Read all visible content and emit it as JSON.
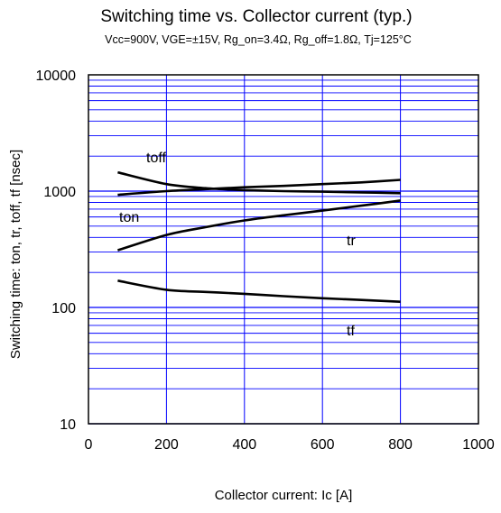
{
  "chart_data": {
    "type": "line",
    "title": "Switching time  vs.  Collector current  (typ.)",
    "subtitle": "Vcc=900V, VGE=±15V, Rg_on=3.4Ω, Rg_off=1.8Ω, Tj=125°C",
    "xlabel": "Collector current: Ic [A]",
    "ylabel": "Switching time: ton, tr, toff, tf [nsec]",
    "xlim": [
      0,
      1000
    ],
    "ylim": [
      10,
      10000
    ],
    "yscale": "log",
    "grid": true,
    "x_ticks": [
      "0",
      "200",
      "400",
      "600",
      "800",
      "1000"
    ],
    "y_ticks": [
      "10",
      "100",
      "1000",
      "10000"
    ],
    "series": [
      {
        "name": "toff",
        "x": [
          75,
          200,
          300,
          400,
          500,
          600,
          700,
          800
        ],
        "y": [
          1450,
          1150,
          1060,
          1020,
          1000,
          990,
          975,
          960
        ]
      },
      {
        "name": "ton",
        "x": [
          75,
          200,
          300,
          400,
          500,
          600,
          700,
          800
        ],
        "y": [
          930,
          1000,
          1040,
          1080,
          1110,
          1150,
          1190,
          1250
        ]
      },
      {
        "name": "tr",
        "x": [
          75,
          200,
          300,
          400,
          500,
          600,
          700,
          800
        ],
        "y": [
          310,
          420,
          490,
          560,
          620,
          680,
          750,
          830
        ]
      },
      {
        "name": "tf",
        "x": [
          75,
          200,
          300,
          400,
          500,
          600,
          700,
          800
        ],
        "y": [
          170,
          142,
          136,
          131,
          125,
          120,
          116,
          112
        ]
      }
    ]
  }
}
